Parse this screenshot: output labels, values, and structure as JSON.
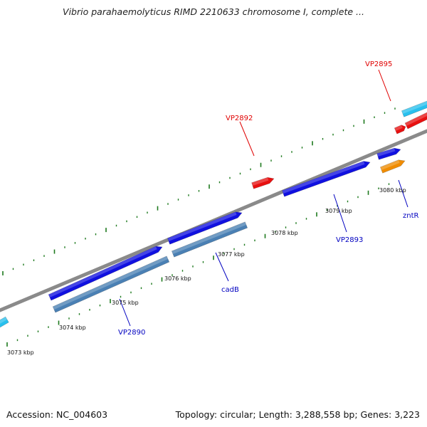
{
  "header": {
    "title": "Vibrio parahaemolyticus RIMD 2210633 chromosome I, complete ..."
  },
  "footer": {
    "accession": "Accession: NC_004603",
    "summary": "Topology: circular; Length: 3,288,558 bp; Genes: 3,223"
  },
  "colors": {
    "backbone": "#8a8a8a",
    "tick": "#1e7a1e",
    "gene_blue": "#1010e0",
    "gene_steel": "#4a80b4",
    "gene_red": "#e81010",
    "gene_orange": "#f08c00",
    "gene_cyan": "#28c0ee",
    "label_red": "#e00000",
    "label_blue": "#0000c0"
  },
  "scale_labels": [
    {
      "kbp": 3073,
      "text": "3073 kbp"
    },
    {
      "kbp": 3074,
      "text": "3074 kbp"
    },
    {
      "kbp": 3075,
      "text": "3075 kbp"
    },
    {
      "kbp": 3076,
      "text": "3076 kbp"
    },
    {
      "kbp": 3077,
      "text": "3077 kbp"
    },
    {
      "kbp": 3078,
      "text": "3078 kbp"
    },
    {
      "kbp": 3079,
      "text": "3079 kbp"
    },
    {
      "kbp": 3080,
      "text": "3080 kbp"
    }
  ],
  "gene_labels": [
    {
      "name": "VP2895",
      "color": "label_red"
    },
    {
      "name": "VP2892",
      "color": "label_red"
    },
    {
      "name": "VP2893",
      "color": "label_blue"
    },
    {
      "name": "zntR",
      "color": "label_blue"
    },
    {
      "name": "cadB",
      "color": "label_blue"
    },
    {
      "name": "VP2890",
      "color": "label_blue"
    }
  ]
}
